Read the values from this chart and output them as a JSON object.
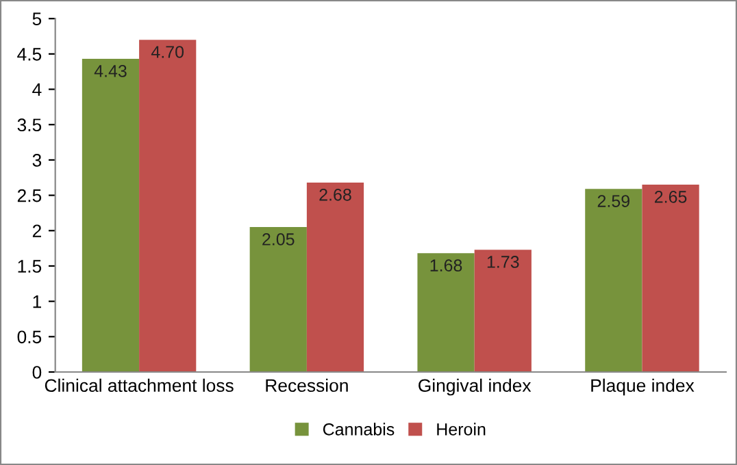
{
  "chart_data": {
    "type": "bar",
    "categories": [
      "Clinical attachment loss",
      "Recession",
      "Gingival index",
      "Plaque index"
    ],
    "series": [
      {
        "name": "Cannabis",
        "color": "#77933c",
        "values": [
          4.43,
          2.05,
          1.68,
          2.59
        ],
        "value_labels": [
          "4.43",
          "2.05",
          "1.68",
          "2.59"
        ]
      },
      {
        "name": "Heroin",
        "color": "#c0504d",
        "values": [
          4.7,
          2.68,
          1.73,
          2.65
        ],
        "value_labels": [
          "4.70",
          "2.68",
          "1.73",
          "2.65"
        ]
      }
    ],
    "ylim": [
      0,
      5
    ],
    "yticks": [
      0,
      0.5,
      1,
      1.5,
      2,
      2.5,
      3,
      3.5,
      4,
      4.5,
      5
    ],
    "grid": false,
    "legend": "bottom"
  }
}
